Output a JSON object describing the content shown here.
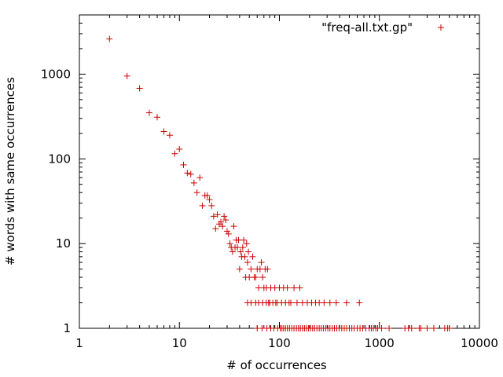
{
  "chart_data": {
    "type": "scatter",
    "xscale": "log",
    "yscale": "log",
    "xlim": [
      1,
      10000
    ],
    "ylim": [
      1,
      5000
    ],
    "xlabel": "# of occurrences",
    "ylabel": "# words with same occurrences",
    "xticks": [
      {
        "value": 1,
        "label": "1"
      },
      {
        "value": 10,
        "label": "10"
      },
      {
        "value": 100,
        "label": "100"
      },
      {
        "value": 1000,
        "label": "1000"
      },
      {
        "value": 10000,
        "label": "10000"
      }
    ],
    "yticks": [
      {
        "value": 1,
        "label": "1"
      },
      {
        "value": 10,
        "label": "10"
      },
      {
        "value": 100,
        "label": "100"
      },
      {
        "value": 1000,
        "label": "1000"
      }
    ],
    "grid": false,
    "legend_position": "top-right",
    "marker": "+",
    "series": [
      {
        "name": "\"freq-all.txt.gp\"",
        "color": "#cc0000",
        "points": [
          [
            2,
            2600
          ],
          [
            3,
            950
          ],
          [
            4,
            680
          ],
          [
            5,
            350
          ],
          [
            6,
            310
          ],
          [
            7,
            210
          ],
          [
            8,
            190
          ],
          [
            9,
            115
          ],
          [
            10,
            130
          ],
          [
            11,
            85
          ],
          [
            12,
            68
          ],
          [
            13,
            66
          ],
          [
            14,
            52
          ],
          [
            15,
            40
          ],
          [
            16,
            60
          ],
          [
            17,
            28
          ],
          [
            18,
            37
          ],
          [
            19,
            37
          ],
          [
            20,
            33
          ],
          [
            21,
            28
          ],
          [
            22,
            21
          ],
          [
            23,
            15
          ],
          [
            24,
            22
          ],
          [
            25,
            17
          ],
          [
            26,
            18
          ],
          [
            27,
            16
          ],
          [
            28,
            21
          ],
          [
            29,
            19
          ],
          [
            30,
            14
          ],
          [
            31,
            13
          ],
          [
            32,
            10
          ],
          [
            33,
            9
          ],
          [
            34,
            8
          ],
          [
            35,
            16
          ],
          [
            36,
            9
          ],
          [
            37,
            11
          ],
          [
            38,
            9
          ],
          [
            39,
            11
          ],
          [
            40,
            5
          ],
          [
            41,
            8
          ],
          [
            42,
            7
          ],
          [
            43,
            9
          ],
          [
            44,
            11
          ],
          [
            45,
            7
          ],
          [
            46,
            4
          ],
          [
            47,
            10
          ],
          [
            48,
            6
          ],
          [
            49,
            8
          ],
          [
            50,
            4
          ],
          [
            52,
            5
          ],
          [
            54,
            7
          ],
          [
            56,
            4
          ],
          [
            58,
            4
          ],
          [
            60,
            5
          ],
          [
            62,
            3
          ],
          [
            64,
            5
          ],
          [
            66,
            6
          ],
          [
            68,
            4
          ],
          [
            70,
            3
          ],
          [
            72,
            5
          ],
          [
            74,
            3
          ],
          [
            76,
            5
          ],
          [
            78,
            2
          ],
          [
            82,
            3
          ],
          [
            86,
            2
          ],
          [
            90,
            3
          ],
          [
            95,
            2
          ],
          [
            100,
            3
          ],
          [
            105,
            2
          ],
          [
            110,
            3
          ],
          [
            115,
            2
          ],
          [
            120,
            3
          ],
          [
            125,
            2
          ],
          [
            130,
            2
          ],
          [
            140,
            3
          ],
          [
            150,
            2
          ],
          [
            160,
            3
          ],
          [
            170,
            2
          ],
          [
            190,
            2
          ],
          [
            210,
            2
          ],
          [
            230,
            2
          ],
          [
            250,
            2
          ],
          [
            280,
            2
          ],
          [
            320,
            2
          ],
          [
            370,
            2
          ],
          [
            470,
            2
          ],
          [
            630,
            2
          ],
          [
            48,
            2
          ],
          [
            52,
            2
          ],
          [
            58,
            2
          ],
          [
            62,
            2
          ],
          [
            68,
            2
          ],
          [
            74,
            2
          ],
          [
            80,
            2
          ],
          [
            92,
            2
          ],
          [
            60,
            1
          ],
          [
            67,
            1
          ],
          [
            75,
            1
          ],
          [
            82,
            1
          ],
          [
            88,
            1
          ],
          [
            96,
            1
          ],
          [
            102,
            1
          ],
          [
            106,
            1
          ],
          [
            110,
            1
          ],
          [
            115,
            1
          ],
          [
            120,
            1
          ],
          [
            126,
            1
          ],
          [
            133,
            1
          ],
          [
            140,
            1
          ],
          [
            148,
            1
          ],
          [
            155,
            1
          ],
          [
            162,
            1
          ],
          [
            170,
            1
          ],
          [
            178,
            1
          ],
          [
            186,
            1
          ],
          [
            195,
            1
          ],
          [
            205,
            1
          ],
          [
            215,
            1
          ],
          [
            225,
            1
          ],
          [
            237,
            1
          ],
          [
            250,
            1
          ],
          [
            262,
            1
          ],
          [
            275,
            1
          ],
          [
            290,
            1
          ],
          [
            305,
            1
          ],
          [
            320,
            1
          ],
          [
            338,
            1
          ],
          [
            355,
            1
          ],
          [
            375,
            1
          ],
          [
            395,
            1
          ],
          [
            420,
            1
          ],
          [
            445,
            1
          ],
          [
            470,
            1
          ],
          [
            500,
            1
          ],
          [
            530,
            1
          ],
          [
            560,
            1
          ],
          [
            600,
            1
          ],
          [
            640,
            1
          ],
          [
            680,
            1
          ],
          [
            730,
            1
          ],
          [
            790,
            1
          ],
          [
            830,
            1
          ],
          [
            870,
            1
          ],
          [
            920,
            1
          ],
          [
            960,
            1
          ],
          [
            1050,
            1
          ],
          [
            1250,
            1
          ],
          [
            1800,
            1
          ],
          [
            1950,
            1
          ],
          [
            2100,
            1
          ],
          [
            2500,
            1
          ],
          [
            2600,
            1
          ],
          [
            3000,
            1
          ],
          [
            3500,
            1
          ],
          [
            4500,
            1
          ],
          [
            4800,
            1
          ],
          [
            5000,
            1
          ]
        ]
      }
    ]
  }
}
